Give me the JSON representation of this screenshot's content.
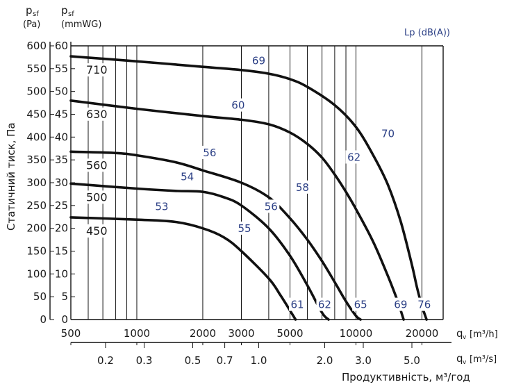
{
  "chart_data": {
    "type": "line",
    "ylabel": "Статичний тиск, Па",
    "xlabel": "Продуктивність, м³/год",
    "y_axis_pa": {
      "header_symbol": "p",
      "header_subscript": "sf",
      "unit": "(Pa)",
      "ticks": [
        "0",
        "50",
        "100",
        "150",
        "200",
        "250",
        "300",
        "350",
        "400",
        "450",
        "500",
        "550",
        "600"
      ],
      "range": [
        0,
        600
      ]
    },
    "y_axis_mmwg": {
      "header_symbol": "p",
      "header_subscript": "sf",
      "unit": "(mmWG)",
      "ticks": [
        "0",
        "5",
        "10",
        "15",
        "20",
        "25",
        "30",
        "35",
        "40",
        "45",
        "50",
        "55",
        "60"
      ],
      "range": [
        0,
        60
      ]
    },
    "x_axis_m3h": {
      "ticks": [
        {
          "value": 500,
          "label": "500"
        },
        {
          "value": 1000,
          "label": "1000"
        },
        {
          "value": 2000,
          "label": "2000"
        },
        {
          "value": 3000,
          "label": "3000"
        },
        {
          "value": 5000,
          "label": "5000"
        },
        {
          "value": 10000,
          "label": "10000"
        },
        {
          "value": 20000,
          "label": "20000"
        }
      ],
      "unit_symbol": "q",
      "unit_subscript": "v",
      "unit": "[m³/h]",
      "scale": "log",
      "range": [
        500,
        25000
      ]
    },
    "x_axis_m3s": {
      "ticks": [
        {
          "value": 0.2,
          "label": "0.2"
        },
        {
          "value": 0.3,
          "label": "0.3"
        },
        {
          "value": 0.5,
          "label": "0.5"
        },
        {
          "value": 0.7,
          "label": "0.7"
        },
        {
          "value": 1.0,
          "label": "1.0"
        },
        {
          "value": 2.0,
          "label": "2.0"
        },
        {
          "value": 3.0,
          "label": "3.0"
        },
        {
          "value": 5.0,
          "label": "5.0"
        }
      ],
      "unit_symbol": "q",
      "unit_subscript": "v",
      "unit": "[m³/s]",
      "scale": "log"
    },
    "noise_header": "Lp (dB(A))",
    "grid_x_values": [
      600,
      700,
      800,
      900,
      1000,
      2000,
      3000,
      4000,
      5000,
      6000,
      7000,
      8000,
      9000,
      10000,
      20000
    ],
    "series": [
      {
        "name": "710",
        "x": [
          500,
          1000,
          2000,
          3000,
          4000,
          5000,
          6000,
          8000,
          10000,
          12000,
          14000,
          16000,
          18000,
          19000,
          20000,
          21000
        ],
        "y": [
          577,
          566,
          554,
          547,
          539,
          527,
          510,
          470,
          422,
          360,
          295,
          215,
          120,
          70,
          30,
          0
        ],
        "noise": [
          {
            "label": "69",
            "x": 3600,
            "y": 560
          },
          {
            "label": "70",
            "x": 14000,
            "y": 400
          },
          {
            "label": "76",
            "x": 20500,
            "y": 25
          }
        ]
      },
      {
        "name": "630",
        "x": [
          500,
          1000,
          2000,
          3000,
          4000,
          5000,
          6000,
          7000,
          8000,
          9000,
          10000,
          12000,
          14000,
          15500,
          16500
        ],
        "y": [
          480,
          462,
          446,
          438,
          428,
          410,
          385,
          355,
          318,
          280,
          242,
          170,
          95,
          40,
          0
        ],
        "noise": [
          {
            "label": "60",
            "x": 2900,
            "y": 462
          },
          {
            "label": "62",
            "x": 9800,
            "y": 348
          },
          {
            "label": "69",
            "x": 16000,
            "y": 25
          }
        ]
      },
      {
        "name": "560",
        "x": [
          500,
          800,
          1000,
          1500,
          2000,
          3000,
          4000,
          5000,
          6000,
          7000,
          8000,
          9000,
          10000,
          10500
        ],
        "y": [
          368,
          365,
          360,
          345,
          327,
          300,
          268,
          222,
          175,
          128,
          82,
          40,
          8,
          0
        ],
        "noise": [
          {
            "label": "56",
            "x": 2150,
            "y": 358
          },
          {
            "label": "58",
            "x": 5700,
            "y": 282
          },
          {
            "label": "65",
            "x": 10500,
            "y": 25
          }
        ]
      },
      {
        "name": "500",
        "x": [
          500,
          1000,
          1500,
          2000,
          2500,
          3000,
          4000,
          5000,
          6000,
          7000,
          7500
        ],
        "y": [
          298,
          287,
          282,
          280,
          268,
          250,
          200,
          140,
          75,
          15,
          0
        ],
        "noise": [
          {
            "label": "54",
            "x": 1700,
            "y": 305
          },
          {
            "label": "56",
            "x": 4100,
            "y": 240
          },
          {
            "label": "62",
            "x": 7200,
            "y": 25
          }
        ]
      },
      {
        "name": "450",
        "x": [
          500,
          1000,
          1500,
          2000,
          2500,
          3000,
          4000,
          4500,
          5000,
          5300
        ],
        "y": [
          224,
          219,
          214,
          200,
          180,
          150,
          90,
          55,
          20,
          0
        ],
        "noise": [
          {
            "label": "53",
            "x": 1300,
            "y": 240
          },
          {
            "label": "55",
            "x": 3100,
            "y": 192
          },
          {
            "label": "61",
            "x": 5400,
            "y": 25
          }
        ]
      }
    ]
  }
}
